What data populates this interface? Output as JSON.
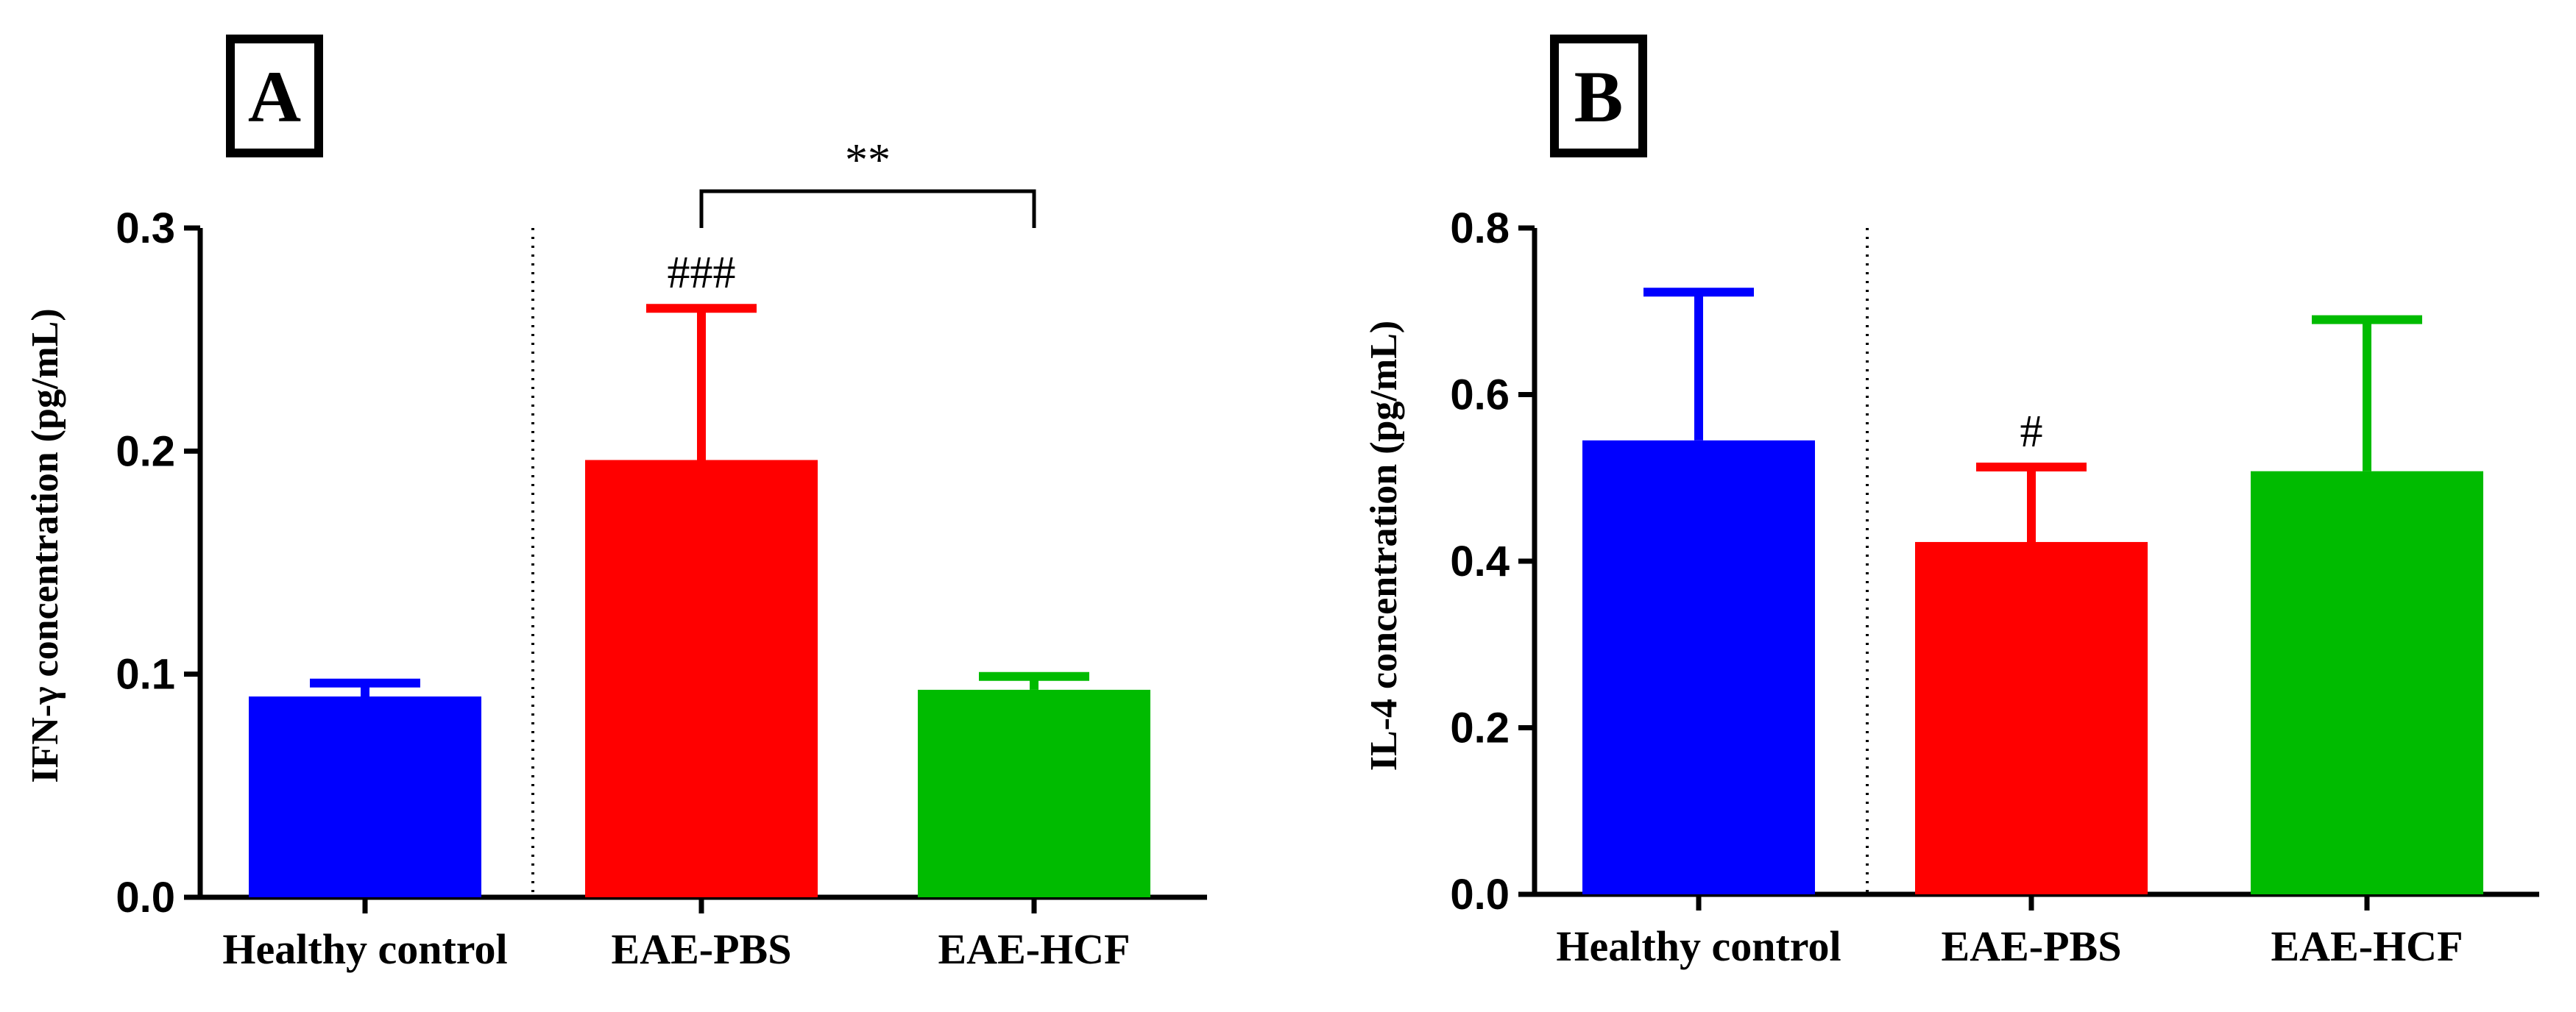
{
  "chart_data": [
    {
      "type": "bar",
      "panel": "A",
      "categories": [
        "Healthy control",
        "EAE-PBS",
        "EAE-HCF"
      ],
      "values": [
        0.09,
        0.196,
        0.093
      ],
      "errors": [
        0.006,
        0.068,
        0.006
      ],
      "colors": [
        "#0000ff",
        "#ff0000",
        "#00bb00"
      ],
      "ylabel": "IFN-γ concentration (pg/mL)",
      "ylim": [
        0,
        0.3
      ],
      "yticks": [
        "0.0",
        "0.1",
        "0.2",
        "0.3"
      ],
      "annotations": [
        {
          "text": "###",
          "target": "EAE-PBS"
        },
        {
          "text": "**",
          "bracket": [
            "EAE-PBS",
            "EAE-HCF"
          ]
        }
      ]
    },
    {
      "type": "bar",
      "panel": "B",
      "categories": [
        "Healthy control",
        "EAE-PBS",
        "EAE-HCF"
      ],
      "values": [
        0.545,
        0.423,
        0.508
      ],
      "errors": [
        0.178,
        0.09,
        0.182
      ],
      "colors": [
        "#0000ff",
        "#ff0000",
        "#00bb00"
      ],
      "ylabel": "IL-4 concentration (pg/mL)",
      "ylim": [
        0,
        0.8
      ],
      "yticks": [
        "0.0",
        "0.2",
        "0.4",
        "0.6",
        "0.8"
      ],
      "annotations": [
        {
          "text": "#",
          "target": "EAE-PBS"
        }
      ]
    }
  ]
}
